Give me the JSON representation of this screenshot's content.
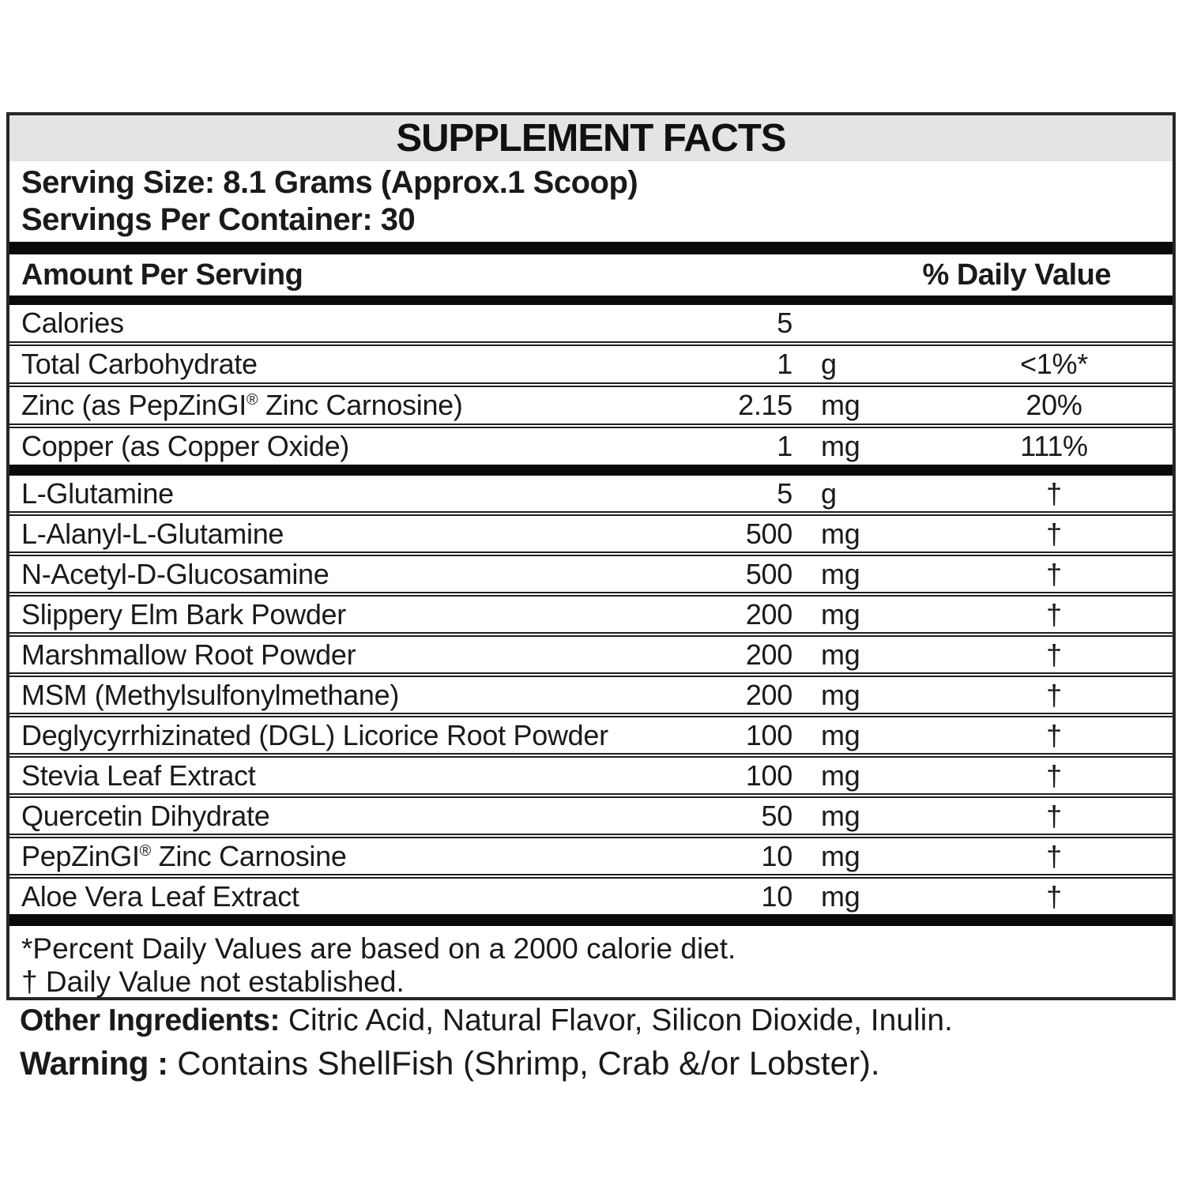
{
  "title": "SUPPLEMENT FACTS",
  "serving": {
    "serving_size": "Serving Size: 8.1 Grams (Approx.1 Scoop)",
    "servings_per_container": "Servings Per Container: 30"
  },
  "header": {
    "amount": "Amount Per Serving",
    "daily_value": "% Daily Value"
  },
  "nutrients": [
    {
      "name": "Calories",
      "amount": "5",
      "unit": "",
      "dv": ""
    },
    {
      "name": "Total Carbohydrate",
      "amount": "1",
      "unit": "g",
      "dv": "<1%*"
    },
    {
      "name": "Zinc (as PepZinGI® Zinc Carnosine)",
      "amount": "2.15",
      "unit": "mg",
      "dv": "20%"
    },
    {
      "name": "Copper (as Copper Oxide)",
      "amount": "1",
      "unit": "mg",
      "dv": "111%"
    }
  ],
  "ingredients": [
    {
      "name": "L-Glutamine",
      "amount": "5",
      "unit": "g",
      "dv": "†"
    },
    {
      "name": "L-Alanyl-L-Glutamine",
      "amount": "500",
      "unit": "mg",
      "dv": "†"
    },
    {
      "name": "N-Acetyl-D-Glucosamine",
      "amount": "500",
      "unit": "mg",
      "dv": "†"
    },
    {
      "name": "Slippery Elm Bark Powder",
      "amount": "200",
      "unit": "mg",
      "dv": "†"
    },
    {
      "name": "Marshmallow Root Powder",
      "amount": "200",
      "unit": "mg",
      "dv": "†"
    },
    {
      "name": "MSM (Methylsulfonylmethane)",
      "amount": "200",
      "unit": "mg",
      "dv": "†"
    },
    {
      "name": "Deglycyrrhizinated (DGL) Licorice Root Powder",
      "amount": "100",
      "unit": "mg",
      "dv": "†"
    },
    {
      "name": "Stevia Leaf Extract",
      "amount": "100",
      "unit": "mg",
      "dv": "†"
    },
    {
      "name": "Quercetin Dihydrate",
      "amount": "50",
      "unit": "mg",
      "dv": "†"
    },
    {
      "name": "PepZinGI® Zinc Carnosine",
      "amount": "10",
      "unit": "mg",
      "dv": "†"
    },
    {
      "name": "Aloe Vera Leaf Extract",
      "amount": "10",
      "unit": "mg",
      "dv": "†"
    }
  ],
  "footnotes": {
    "percent": "*Percent Daily Values are based on a 2000 calorie diet.",
    "dagger": "† Daily Value not established."
  },
  "other_ingredients": {
    "label": "Other Ingredients:",
    "text": " Citric Acid, Natural Flavor, Silicon Dioxide, Inulin."
  },
  "warning": {
    "label": "Warning :",
    "text": " Contains ShellFish (Shrimp, Crab &/or Lobster)."
  },
  "colors": {
    "title_bg": "#e4e4e2",
    "text": "#1a1a1a",
    "border": "#262626",
    "bar": "#0a0a0a"
  }
}
